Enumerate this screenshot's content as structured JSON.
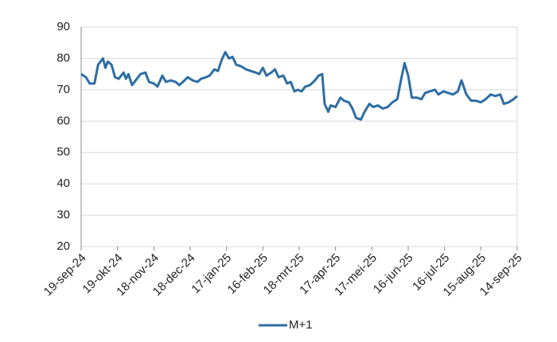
{
  "chart_data": {
    "type": "line",
    "x": [
      "2024-09-19",
      "2024-09-23",
      "2024-09-26",
      "2024-09-30",
      "2024-10-03",
      "2024-10-07",
      "2024-10-09",
      "2024-10-11",
      "2024-10-14",
      "2024-10-17",
      "2024-10-20",
      "2024-10-24",
      "2024-10-26",
      "2024-10-28",
      "2024-10-31",
      "2024-11-03",
      "2024-11-07",
      "2024-11-11",
      "2024-11-14",
      "2024-11-18",
      "2024-11-21",
      "2024-11-25",
      "2024-11-28",
      "2024-12-02",
      "2024-12-06",
      "2024-12-09",
      "2024-12-12",
      "2024-12-16",
      "2024-12-20",
      "2024-12-24",
      "2024-12-27",
      "2024-12-31",
      "2025-01-03",
      "2025-01-07",
      "2025-01-10",
      "2025-01-13",
      "2025-01-16",
      "2025-01-19",
      "2025-01-22",
      "2025-01-25",
      "2025-01-29",
      "2025-02-02",
      "2025-02-06",
      "2025-02-10",
      "2025-02-13",
      "2025-02-16",
      "2025-02-19",
      "2025-02-23",
      "2025-02-26",
      "2025-03-01",
      "2025-03-05",
      "2025-03-08",
      "2025-03-11",
      "2025-03-14",
      "2025-03-17",
      "2025-03-20",
      "2025-03-23",
      "2025-03-27",
      "2025-03-31",
      "2025-04-03",
      "2025-04-06",
      "2025-04-08",
      "2025-04-11",
      "2025-04-13",
      "2025-04-17",
      "2025-04-21",
      "2025-04-24",
      "2025-04-28",
      "2025-05-01",
      "2025-05-04",
      "2025-05-08",
      "2025-05-11",
      "2025-05-15",
      "2025-05-18",
      "2025-05-22",
      "2025-05-26",
      "2025-05-30",
      "2025-06-03",
      "2025-06-07",
      "2025-06-10",
      "2025-06-13",
      "2025-06-16",
      "2025-06-19",
      "2025-06-23",
      "2025-06-27",
      "2025-06-30",
      "2025-07-04",
      "2025-07-08",
      "2025-07-11",
      "2025-07-15",
      "2025-07-19",
      "2025-07-23",
      "2025-07-27",
      "2025-07-30",
      "2025-08-03",
      "2025-08-07",
      "2025-08-11",
      "2025-08-15",
      "2025-08-19",
      "2025-08-23",
      "2025-08-27",
      "2025-08-31",
      "2025-09-03",
      "2025-09-07",
      "2025-09-11",
      "2025-09-14"
    ],
    "series": [
      {
        "name": "M+1",
        "color": "#2e6da4",
        "values": [
          75,
          74,
          72,
          72,
          78,
          80,
          77,
          79,
          78,
          74,
          73.5,
          75.5,
          73.5,
          75,
          71.5,
          73,
          75,
          75.5,
          72.5,
          72,
          71,
          74.5,
          72.5,
          73,
          72.5,
          71.5,
          72.5,
          74,
          73,
          72.5,
          73.5,
          74,
          74.5,
          76.5,
          76,
          79.5,
          82,
          80,
          80.5,
          78,
          77.5,
          76.5,
          76,
          75.5,
          75,
          77,
          74.5,
          75.5,
          76.5,
          74,
          74.5,
          72,
          72.5,
          69.5,
          70,
          69.5,
          71,
          71.5,
          73,
          74.5,
          75,
          65.5,
          63,
          65,
          64.5,
          67.5,
          66.5,
          66,
          64,
          61,
          60.5,
          63,
          65.5,
          64.5,
          65,
          64,
          64.5,
          66,
          67,
          73,
          78.5,
          74.5,
          67.5,
          67.5,
          67,
          69,
          69.5,
          70,
          68.5,
          69.5,
          69,
          68.5,
          69.5,
          73,
          68.5,
          66.5,
          66.5,
          66,
          67,
          68.5,
          68,
          68.5,
          65.5,
          66,
          67,
          68
        ]
      }
    ],
    "xlim": [
      "2024-09-19",
      "2025-09-14"
    ],
    "xticks": [
      {
        "value": "2024-09-19",
        "label": "19-sep-24"
      },
      {
        "value": "2024-10-19",
        "label": "19-okt-24"
      },
      {
        "value": "2024-11-18",
        "label": "18-nov-24"
      },
      {
        "value": "2024-12-18",
        "label": "18-dec-24"
      },
      {
        "value": "2025-01-17",
        "label": "17-jan-25"
      },
      {
        "value": "2025-02-16",
        "label": "16-feb-25"
      },
      {
        "value": "2025-03-18",
        "label": "18-mrt-25"
      },
      {
        "value": "2025-04-17",
        "label": "17-apr-25"
      },
      {
        "value": "2025-05-17",
        "label": "17-mei-25"
      },
      {
        "value": "2025-06-16",
        "label": "16-jun-25"
      },
      {
        "value": "2025-07-16",
        "label": "16-jul-25"
      },
      {
        "value": "2025-08-15",
        "label": "15-aug-25"
      },
      {
        "value": "2025-09-14",
        "label": "14-sep-25"
      }
    ],
    "ylim": [
      20,
      90
    ],
    "yticks": [
      20,
      30,
      40,
      50,
      60,
      70,
      80,
      90
    ],
    "grid": true,
    "legend": "bottom"
  }
}
